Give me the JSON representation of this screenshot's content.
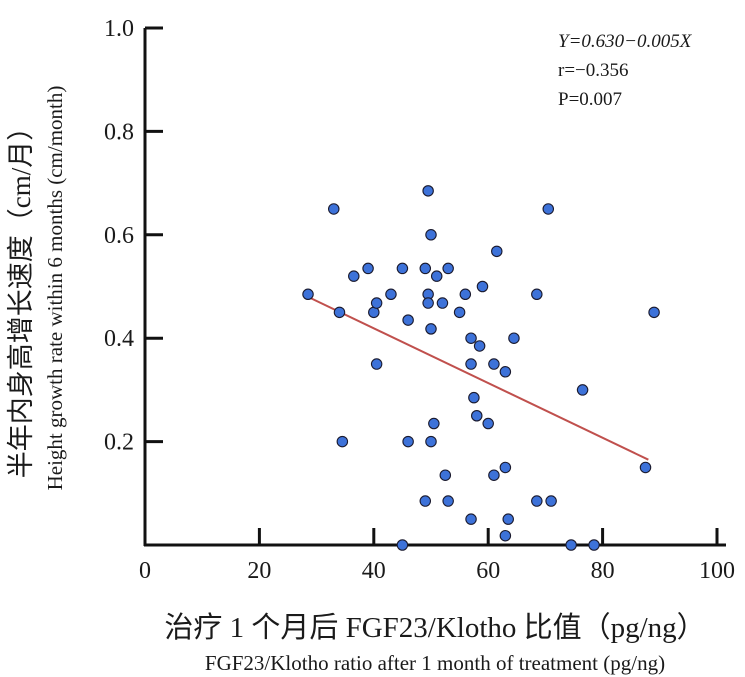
{
  "chart_data": {
    "type": "scatter",
    "xlabel": "治疗 1 个月后 FGF23/Klotho 比值（pg/ng）",
    "xlabel_en": "FGF23/Klotho ratio after 1 month of treatment (pg/ng)",
    "ylabel": "半年内身高增长速度（cm/月）",
    "ylabel_en": "Height growth rate within 6 months (cm/month)",
    "xlim": [
      0,
      100
    ],
    "ylim": [
      0,
      1.0
    ],
    "x_ticks": [
      0,
      20,
      40,
      60,
      80,
      100
    ],
    "y_ticks": [
      0.2,
      0.4,
      0.6,
      0.8,
      1.0
    ],
    "x_tick_labels": [
      "0",
      "20",
      "40",
      "60",
      "80",
      "100"
    ],
    "y_tick_labels": [
      "0.2",
      "0.4",
      "0.6",
      "0.8",
      "1.0"
    ],
    "grid": false,
    "point_color": "#3d72d9",
    "line_color": "#c0504d",
    "annotation": {
      "equation": "Y=0.630−0.005X",
      "r": "r=−0.356",
      "p": "P=0.007"
    },
    "regression": {
      "x": [
        28.5,
        88
      ],
      "y": [
        0.48,
        0.165
      ]
    },
    "points": [
      {
        "x": 28.5,
        "y": 0.485
      },
      {
        "x": 33,
        "y": 0.65
      },
      {
        "x": 34,
        "y": 0.45
      },
      {
        "x": 34.5,
        "y": 0.2
      },
      {
        "x": 36.5,
        "y": 0.52
      },
      {
        "x": 39,
        "y": 0.535
      },
      {
        "x": 40,
        "y": 0.45
      },
      {
        "x": 40.5,
        "y": 0.468
      },
      {
        "x": 40.5,
        "y": 0.35
      },
      {
        "x": 43,
        "y": 0.485
      },
      {
        "x": 45,
        "y": 0.535
      },
      {
        "x": 45,
        "y": 0.0
      },
      {
        "x": 46,
        "y": 0.435
      },
      {
        "x": 46,
        "y": 0.2
      },
      {
        "x": 49,
        "y": 0.535
      },
      {
        "x": 49,
        "y": 0.085
      },
      {
        "x": 49.5,
        "y": 0.685
      },
      {
        "x": 49.5,
        "y": 0.485
      },
      {
        "x": 49.5,
        "y": 0.468
      },
      {
        "x": 50,
        "y": 0.6
      },
      {
        "x": 50,
        "y": 0.418
      },
      {
        "x": 50,
        "y": 0.2
      },
      {
        "x": 50.5,
        "y": 0.235
      },
      {
        "x": 51,
        "y": 0.52
      },
      {
        "x": 52,
        "y": 0.468
      },
      {
        "x": 53,
        "y": 0.535
      },
      {
        "x": 53,
        "y": 0.085
      },
      {
        "x": 52.5,
        "y": 0.135
      },
      {
        "x": 55,
        "y": 0.45
      },
      {
        "x": 56,
        "y": 0.485
      },
      {
        "x": 57,
        "y": 0.4
      },
      {
        "x": 57,
        "y": 0.35
      },
      {
        "x": 57,
        "y": 0.05
      },
      {
        "x": 57.5,
        "y": 0.285
      },
      {
        "x": 58,
        "y": 0.25
      },
      {
        "x": 58.5,
        "y": 0.385
      },
      {
        "x": 59,
        "y": 0.5
      },
      {
        "x": 60,
        "y": 0.235
      },
      {
        "x": 61,
        "y": 0.35
      },
      {
        "x": 61,
        "y": 0.135
      },
      {
        "x": 61.5,
        "y": 0.568
      },
      {
        "x": 63,
        "y": 0.335
      },
      {
        "x": 63,
        "y": 0.15
      },
      {
        "x": 63.5,
        "y": 0.05
      },
      {
        "x": 63,
        "y": 0.018
      },
      {
        "x": 64.5,
        "y": 0.4
      },
      {
        "x": 68.5,
        "y": 0.485
      },
      {
        "x": 68.5,
        "y": 0.085
      },
      {
        "x": 70.5,
        "y": 0.65
      },
      {
        "x": 71,
        "y": 0.085
      },
      {
        "x": 74.5,
        "y": 0.0
      },
      {
        "x": 76.5,
        "y": 0.3
      },
      {
        "x": 78.5,
        "y": 0.0
      },
      {
        "x": 87.5,
        "y": 0.15
      },
      {
        "x": 89,
        "y": 0.45
      }
    ]
  }
}
